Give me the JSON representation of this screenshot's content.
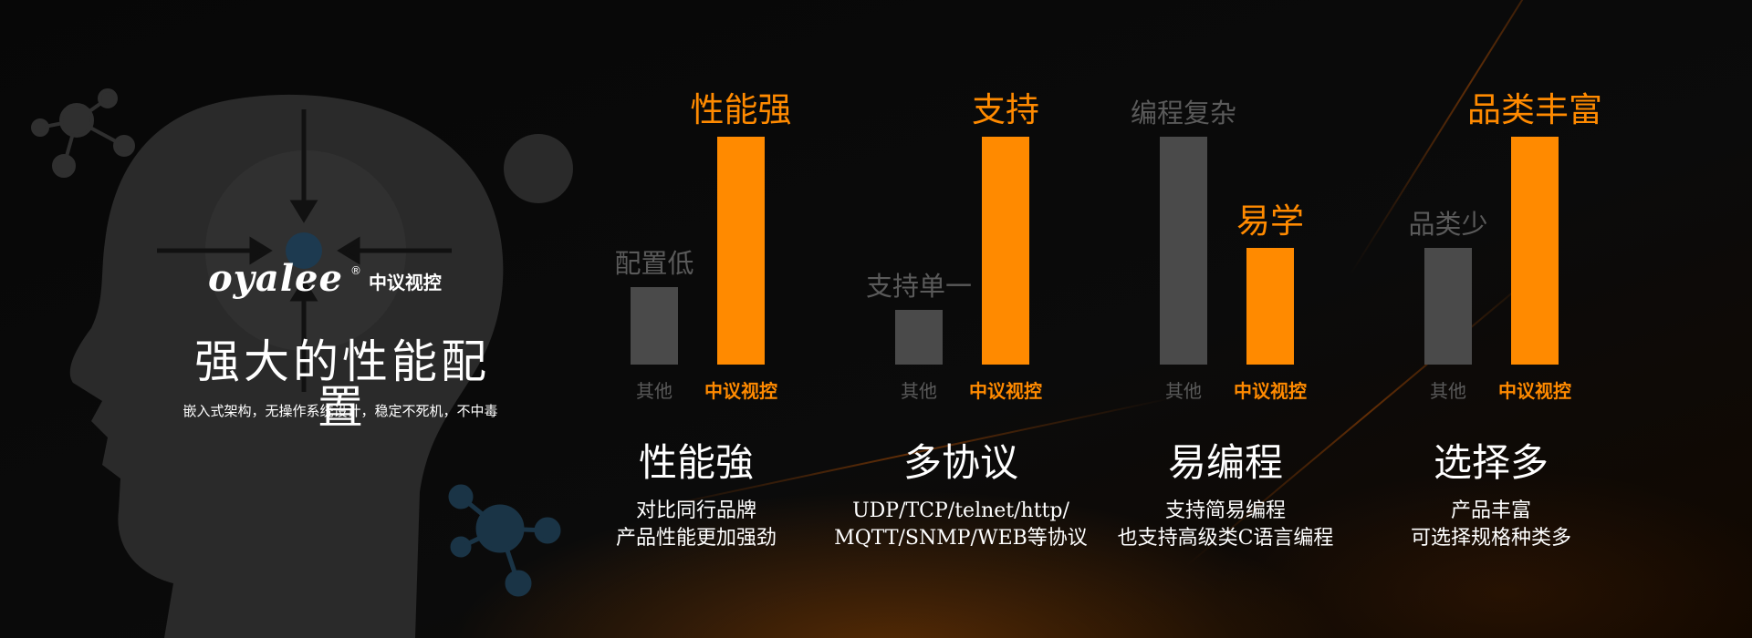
{
  "brand": {
    "logo_text": "oyalee",
    "registered": "®",
    "name_cn": "中议视控"
  },
  "hero": {
    "title": "强大的性能配置",
    "subtitle": "嵌入式架构，无操作系统设计，稳定不死机，不中毒"
  },
  "colors": {
    "accent": "#ff8a00",
    "muted": "#4a4a4a",
    "background": "#050505"
  },
  "chart_data": [
    {
      "type": "bar",
      "categories": [
        "其他",
        "中议视控"
      ],
      "values": [
        0.34,
        1.0
      ],
      "bar_labels": [
        "配置低",
        "性能强"
      ]
    },
    {
      "type": "bar",
      "categories": [
        "其他",
        "中议视控"
      ],
      "values": [
        0.24,
        1.0
      ],
      "bar_labels": [
        "支持单一",
        "支持"
      ]
    },
    {
      "type": "bar",
      "categories": [
        "其他",
        "中议视控"
      ],
      "values": [
        1.0,
        0.51
      ],
      "bar_labels": [
        "编程复杂",
        "易学"
      ]
    },
    {
      "type": "bar",
      "categories": [
        "其他",
        "中议视控"
      ],
      "values": [
        0.51,
        1.0
      ],
      "bar_labels": [
        "品类少",
        "品类丰富"
      ]
    }
  ],
  "features": [
    {
      "title": "性能強",
      "lines": [
        "对比同行品牌",
        "产品性能更加强劲"
      ]
    },
    {
      "title": "多协议",
      "lines": [
        "UDP/TCP/telnet/http/",
        "MQTT/SNMP/WEB等协议"
      ]
    },
    {
      "title": "易编程",
      "lines": [
        "支持简易编程",
        "也支持高级类C语言编程"
      ]
    },
    {
      "title": "选择多",
      "lines": [
        "产品丰富",
        "可选择规格种类多"
      ]
    }
  ]
}
